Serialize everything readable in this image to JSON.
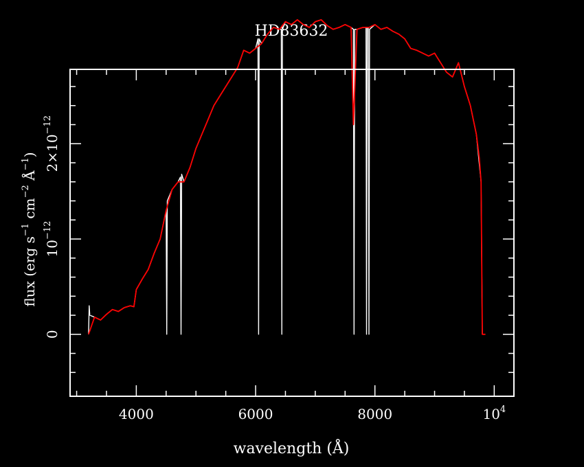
{
  "chart_data": {
    "type": "line",
    "title": "HD83632",
    "xlabel": "wavelength (Å)",
    "ylabel": {
      "prefix": "flux (erg s",
      "e1": "−1",
      "mid1": " cm",
      "e2": "−2",
      "mid2": " Å",
      "e3": "−1",
      "suffix": ")"
    },
    "xlim": [
      2890,
      10330
    ],
    "ylim": [
      -6.5e-13,
      2.78e-12
    ],
    "x_ticks": [
      {
        "value": 4000,
        "label": "4000"
      },
      {
        "value": 6000,
        "label": "6000"
      },
      {
        "value": 8000,
        "label": "8000"
      },
      {
        "value": 10000,
        "label": "10",
        "exp": "4"
      }
    ],
    "y_ticks": [
      {
        "value": 0,
        "label": "0"
      },
      {
        "value": 1e-12,
        "label": "10",
        "exp": "−12"
      },
      {
        "value": 2e-12,
        "label": "2×10",
        "exp": "−12"
      }
    ],
    "grid": false,
    "series": [
      {
        "color": "#ffffff",
        "x": [
          3200,
          3210,
          3220,
          3300,
          3400,
          3500,
          3600,
          3700,
          3800,
          3900,
          3960,
          4000,
          4100,
          4200,
          4300,
          4400,
          4500,
          4510,
          4520,
          4600,
          4700,
          4740,
          4750,
          4760,
          4800,
          4900,
          5000,
          5100,
          5200,
          5300,
          5400,
          5500,
          5600,
          5700,
          5800,
          5900,
          6000,
          6040,
          6050,
          6060,
          6100,
          6200,
          6300,
          6400,
          6430,
          6440,
          6450,
          6500,
          6600,
          6700,
          6800,
          6900,
          7000,
          7100,
          7200,
          7300,
          7400,
          7500,
          7600,
          7640,
          7650,
          7660,
          7700,
          7800,
          7850,
          7860,
          7870,
          7890,
          7900,
          7910,
          8000,
          8100,
          8200,
          8300,
          8400,
          8500,
          8600,
          8700,
          8800,
          8900,
          9000,
          9100,
          9200,
          9300,
          9400,
          9500,
          9600,
          9700,
          9780,
          9800,
          9820,
          9850
        ],
        "y": [
          0,
          3e-13,
          2e-13,
          1.8e-13,
          1.5e-13,
          2.1e-13,
          2.6e-13,
          2.4e-13,
          2.8e-13,
          3e-13,
          2.9e-13,
          4.7e-13,
          5.8e-13,
          6.8e-13,
          8.5e-13,
          1e-12,
          1.3e-12,
          0,
          1.4e-12,
          1.52e-12,
          1.6e-12,
          1.65e-12,
          0,
          1.68e-12,
          1.6e-12,
          1.75e-12,
          1.95e-12,
          2.1e-12,
          2.25e-12,
          2.4e-12,
          2.5e-12,
          2.6e-12,
          2.7e-12,
          2.8e-12,
          2.98e-12,
          2.95e-12,
          3e-12,
          3.1e-12,
          0,
          3.1e-12,
          3.05e-12,
          3.15e-12,
          3.22e-12,
          3.2e-12,
          3.2e-12,
          0,
          3.2e-12,
          3.28e-12,
          3.25e-12,
          3.3e-12,
          3.25e-12,
          3.22e-12,
          3.28e-12,
          3.3e-12,
          3.24e-12,
          3.2e-12,
          3.22e-12,
          3.25e-12,
          3.22e-12,
          3.2e-12,
          0,
          3.2e-12,
          3.2e-12,
          3.22e-12,
          3.22e-12,
          0,
          3.22e-12,
          3.22e-12,
          0,
          3.2e-12,
          3.25e-12,
          3.2e-12,
          3.22e-12,
          3.18e-12,
          3.15e-12,
          3.1e-12,
          3e-12,
          2.98e-12,
          2.95e-12,
          2.92e-12,
          2.95e-12,
          2.85e-12,
          2.75e-12,
          2.7e-12,
          2.85e-12,
          2.6e-12,
          2.4e-12,
          2.1e-12,
          1.6e-12,
          0,
          0,
          0
        ]
      },
      {
        "color": "#ff0000",
        "x": [
          3200,
          3300,
          3400,
          3500,
          3600,
          3700,
          3800,
          3900,
          3960,
          4000,
          4100,
          4200,
          4300,
          4400,
          4500,
          4600,
          4700,
          4800,
          4900,
          5000,
          5100,
          5200,
          5300,
          5400,
          5500,
          5600,
          5700,
          5800,
          5900,
          6000,
          6100,
          6200,
          6300,
          6400,
          6500,
          6600,
          6700,
          6800,
          6900,
          7000,
          7100,
          7200,
          7300,
          7400,
          7500,
          7600,
          7640,
          7700,
          7800,
          7900,
          8000,
          8100,
          8200,
          8300,
          8400,
          8500,
          8600,
          8700,
          8800,
          8900,
          9000,
          9100,
          9200,
          9300,
          9400,
          9500,
          9600,
          9700,
          9750,
          9780,
          9800,
          9850
        ],
        "y": [
          0,
          1.8e-13,
          1.5e-13,
          2.1e-13,
          2.6e-13,
          2.4e-13,
          2.8e-13,
          3e-13,
          2.9e-13,
          4.7e-13,
          5.8e-13,
          6.8e-13,
          8.5e-13,
          1e-12,
          1.3e-12,
          1.52e-12,
          1.6e-12,
          1.6e-12,
          1.75e-12,
          1.95e-12,
          2.1e-12,
          2.25e-12,
          2.4e-12,
          2.5e-12,
          2.6e-12,
          2.7e-12,
          2.8e-12,
          2.98e-12,
          2.95e-12,
          3e-12,
          3.05e-12,
          3.15e-12,
          3.22e-12,
          3.2e-12,
          3.28e-12,
          3.25e-12,
          3.3e-12,
          3.25e-12,
          3.22e-12,
          3.28e-12,
          3.3e-12,
          3.24e-12,
          3.2e-12,
          3.22e-12,
          3.25e-12,
          3.22e-12,
          2.2e-12,
          3.2e-12,
          3.22e-12,
          3.22e-12,
          3.25e-12,
          3.2e-12,
          3.22e-12,
          3.18e-12,
          3.15e-12,
          3.1e-12,
          3e-12,
          2.98e-12,
          2.95e-12,
          2.92e-12,
          2.95e-12,
          2.85e-12,
          2.75e-12,
          2.7e-12,
          2.85e-12,
          2.6e-12,
          2.4e-12,
          2.1e-12,
          1.85e-12,
          1.6e-12,
          0,
          0
        ]
      }
    ]
  }
}
